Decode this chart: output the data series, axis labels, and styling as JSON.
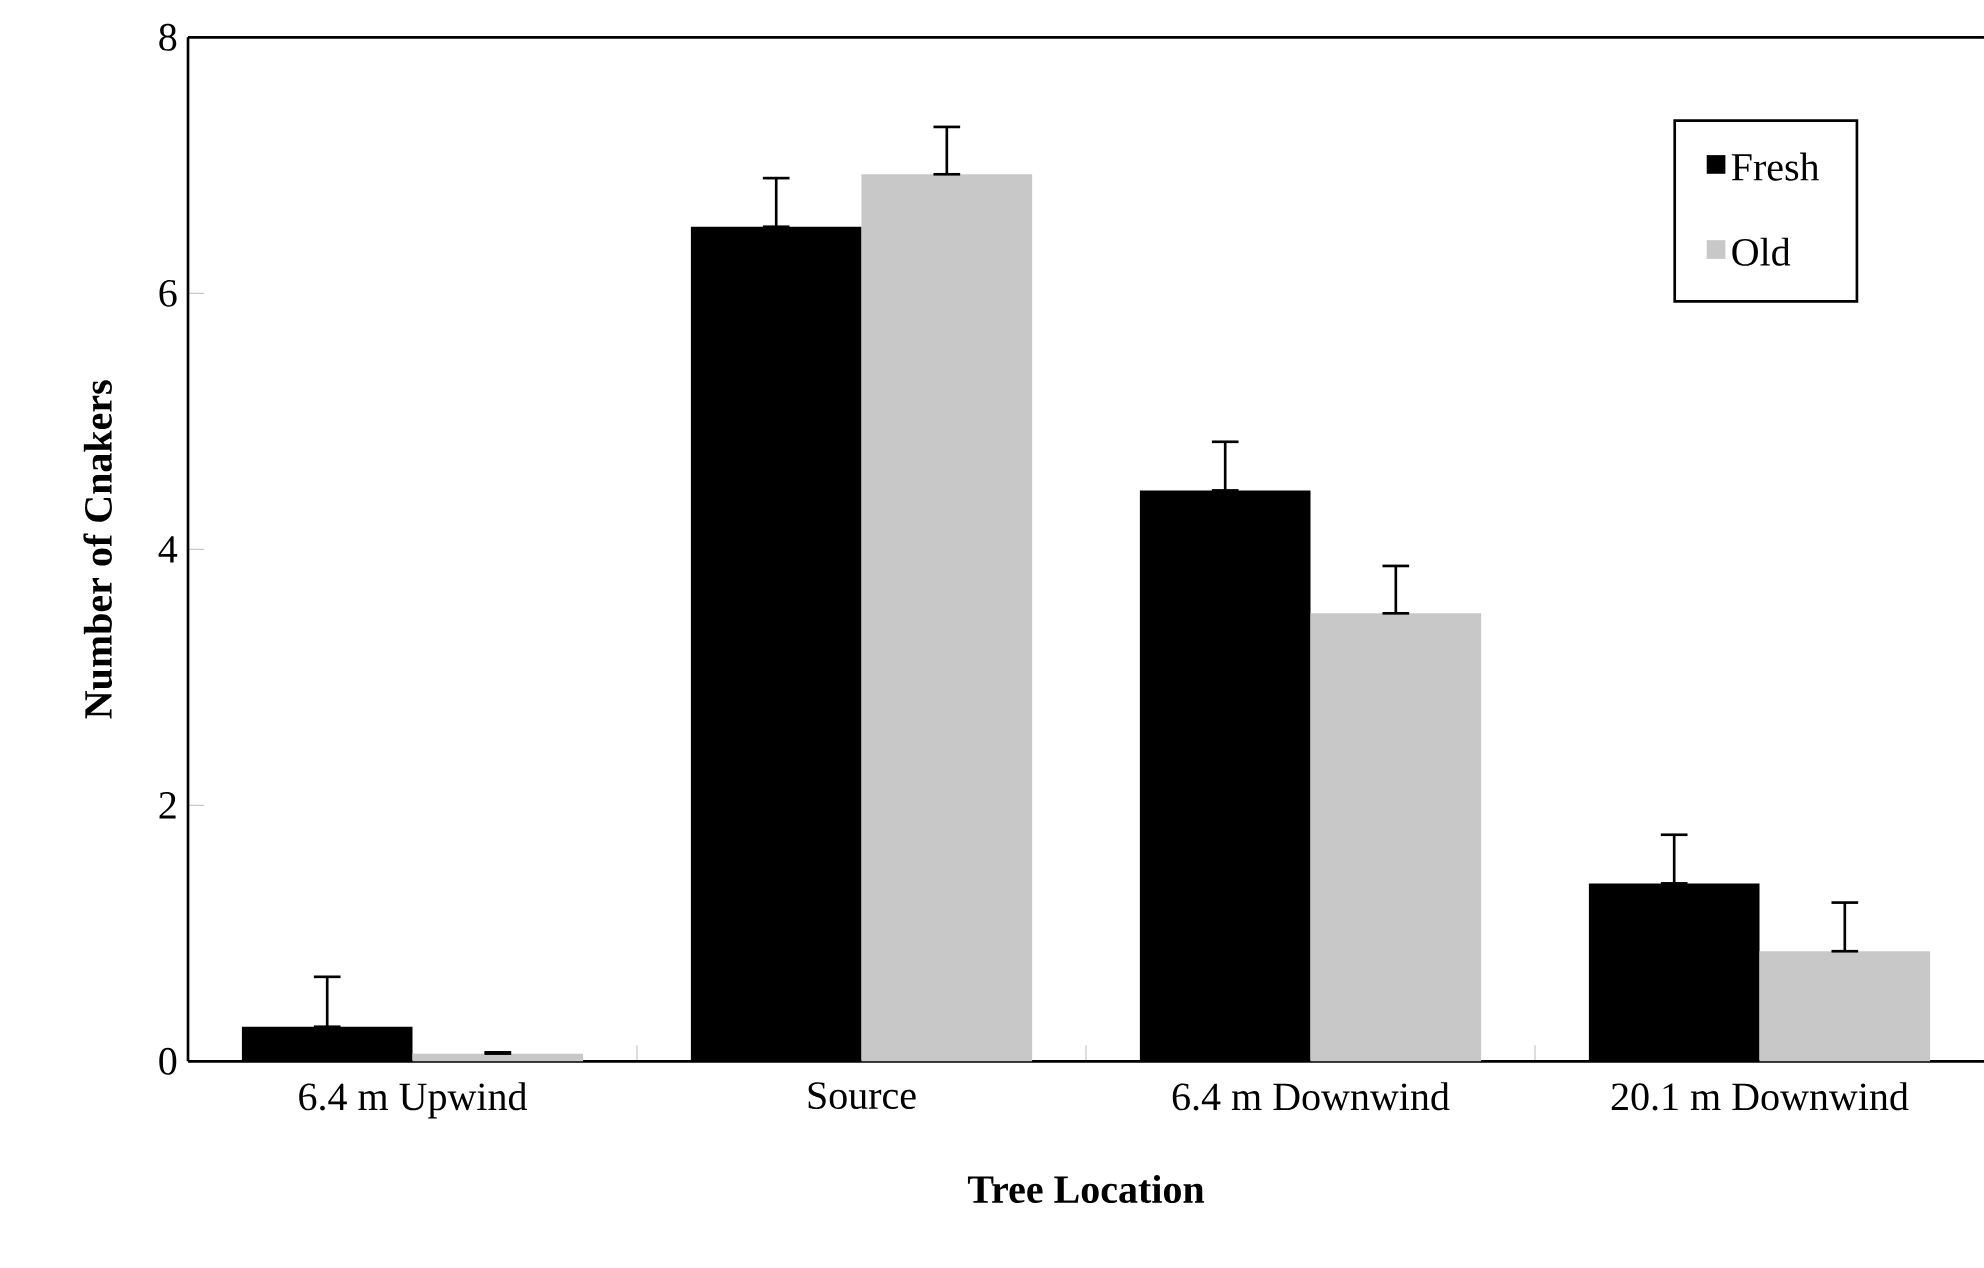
{
  "chart_data": {
    "type": "bar",
    "xlabel": "Tree Location",
    "ylabel": "Number of Cnakers",
    "categories": [
      "6.4 m Upwind",
      "Source",
      "6.4 m Downwind",
      "20.1 m Downwind"
    ],
    "series": [
      {
        "name": "Fresh",
        "color": "#000000",
        "values": [
          0.27,
          6.52,
          4.46,
          1.39
        ],
        "errors": [
          [
            0.27,
            0.66
          ],
          [
            6.52,
            6.9
          ],
          [
            4.46,
            4.84
          ],
          [
            1.39,
            1.77
          ]
        ]
      },
      {
        "name": "Old",
        "color": "#c8c8c8",
        "values": [
          0.06,
          6.93,
          3.5,
          0.86
        ],
        "errors": [
          [
            0.06,
            0.07
          ],
          [
            6.93,
            7.3
          ],
          [
            3.5,
            3.87
          ],
          [
            0.86,
            1.24
          ]
        ]
      }
    ],
    "ylim": [
      0,
      8
    ],
    "yticks": [
      0,
      2,
      4,
      6,
      8
    ],
    "legend": "top right"
  }
}
